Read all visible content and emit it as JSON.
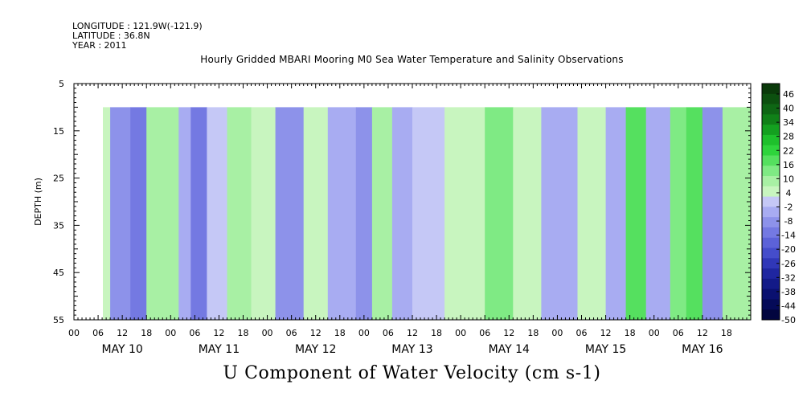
{
  "header": {
    "longitude": "LONGITUDE : 121.9W(-121.9)",
    "latitude": "LATITUDE : 36.8N",
    "year": "YEAR : 2011",
    "title": "Hourly Gridded MBARI Mooring M0 Sea Water Temperature and Salinity Observations"
  },
  "chart_data": {
    "type": "heatmap",
    "title": "Hourly Gridded MBARI Mooring M0 Sea Water Temperature and Salinity Observations",
    "variable_label": "U Component of Water Velocity (cm s-1)",
    "ylabel": "DEPTH (m)",
    "ylim": [
      55,
      5
    ],
    "y_ticks": [
      5,
      15,
      25,
      35,
      45,
      55
    ],
    "data_depth_range": [
      10,
      55
    ],
    "x_range_hours": [
      0,
      168
    ],
    "data_start": "MAY 10 06",
    "x_hour_ticks": [
      "00",
      "06",
      "12",
      "18",
      "00",
      "06",
      "12",
      "18",
      "00",
      "06",
      "12",
      "18",
      "00",
      "06",
      "12",
      "18",
      "00",
      "06",
      "12",
      "18",
      "00",
      "06",
      "12",
      "18",
      "00",
      "06",
      "12",
      "18"
    ],
    "x_day_labels": [
      "MAY 10",
      "MAY 11",
      "MAY 12",
      "MAY 13",
      "MAY 14",
      "MAY 15",
      "MAY 16"
    ],
    "colorbar": {
      "levels": [
        46,
        40,
        34,
        28,
        22,
        16,
        10,
        4,
        -2,
        -8,
        -14,
        -20,
        -26,
        -32,
        -38,
        -44,
        -50
      ],
      "colors": [
        "#0a3a0a",
        "#0c500f",
        "#0e6614",
        "#108018",
        "#14a020",
        "#1ec02c",
        "#2ed43c",
        "#55e05f",
        "#7fea84",
        "#a8f0a4",
        "#c8f5bf",
        "#c5c8f6",
        "#a8acf2",
        "#8d92ea",
        "#7479e2",
        "#5c62d8",
        "#454dcb",
        "#3037b8",
        "#1f26a0",
        "#131a88",
        "#0a1070",
        "#050a58",
        "#02053f"
      ]
    },
    "field_bands": [
      {
        "start": "MAY 10 06",
        "end": "MAY 10 09",
        "value": 4
      },
      {
        "start": "MAY 10 09",
        "end": "MAY 10 14",
        "value": -12
      },
      {
        "start": "MAY 10 14",
        "end": "MAY 10 18",
        "value": -14
      },
      {
        "start": "MAY 10 18",
        "end": "MAY 11 02",
        "value": 5
      },
      {
        "start": "MAY 11 02",
        "end": "MAY 11 05",
        "value": -6
      },
      {
        "start": "MAY 11 05",
        "end": "MAY 11 09",
        "value": -13
      },
      {
        "start": "MAY 11 09",
        "end": "MAY 11 14",
        "value": -4
      },
      {
        "start": "MAY 11 14",
        "end": "MAY 11 20",
        "value": 6
      },
      {
        "start": "MAY 11 20",
        "end": "MAY 12 02",
        "value": 3
      },
      {
        "start": "MAY 12 02",
        "end": "MAY 12 09",
        "value": -9
      },
      {
        "start": "MAY 12 09",
        "end": "MAY 12 15",
        "value": 4
      },
      {
        "start": "MAY 12 15",
        "end": "MAY 12 22",
        "value": -6
      },
      {
        "start": "MAY 12 22",
        "end": "MAY 13 02",
        "value": -10
      },
      {
        "start": "MAY 13 02",
        "end": "MAY 13 07",
        "value": 7
      },
      {
        "start": "MAY 13 07",
        "end": "MAY 13 12",
        "value": -8
      },
      {
        "start": "MAY 13 12",
        "end": "MAY 13 20",
        "value": -4
      },
      {
        "start": "MAY 13 20",
        "end": "MAY 14 06",
        "value": 3
      },
      {
        "start": "MAY 14 06",
        "end": "MAY 14 13",
        "value": 12
      },
      {
        "start": "MAY 14 13",
        "end": "MAY 14 20",
        "value": 4
      },
      {
        "start": "MAY 14 20",
        "end": "MAY 15 05",
        "value": -7
      },
      {
        "start": "MAY 15 05",
        "end": "MAY 15 12",
        "value": 4
      },
      {
        "start": "MAY 15 12",
        "end": "MAY 15 17",
        "value": -6
      },
      {
        "start": "MAY 15 17",
        "end": "MAY 15 22",
        "value": 16
      },
      {
        "start": "MAY 15 22",
        "end": "MAY 16 04",
        "value": -5
      },
      {
        "start": "MAY 16 04",
        "end": "MAY 16 08",
        "value": 9
      },
      {
        "start": "MAY 16 08",
        "end": "MAY 16 12",
        "value": 14
      },
      {
        "start": "MAY 16 12",
        "end": "MAY 16 17",
        "value": -10
      },
      {
        "start": "MAY 16 17",
        "end": "MAY 17 00",
        "value": 6
      }
    ]
  }
}
